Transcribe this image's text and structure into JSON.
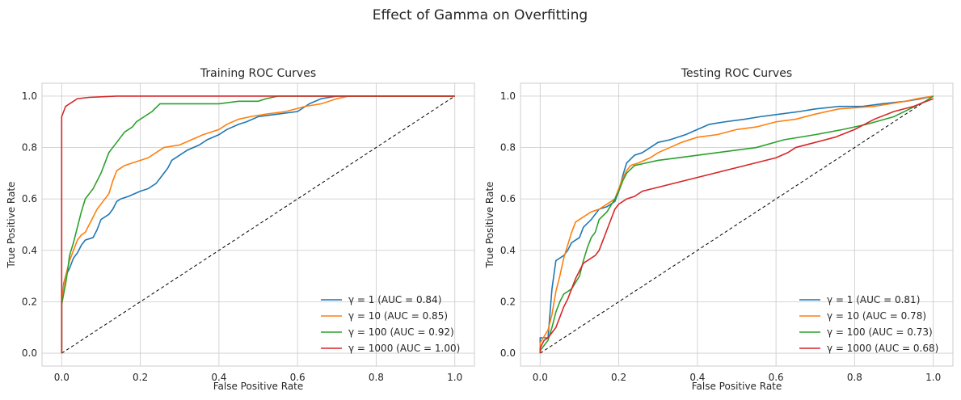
{
  "figure": {
    "title": "Effect of Gamma on Overfitting",
    "colors": [
      "#1f77b4",
      "#ff7f0e",
      "#2ca02c",
      "#d62728"
    ],
    "diagonal_color": "#000000"
  },
  "chart_data": [
    {
      "type": "line",
      "title": "Training ROC Curves",
      "xlabel": "False Positive Rate",
      "ylabel": "True Positive Rate",
      "xlim": [
        -0.05,
        1.05
      ],
      "ylim": [
        -0.05,
        1.05
      ],
      "xticks": [
        "0.0",
        "0.2",
        "0.4",
        "0.6",
        "0.8",
        "1.0"
      ],
      "yticks": [
        "0.0",
        "0.2",
        "0.4",
        "0.6",
        "0.8",
        "1.0"
      ],
      "grid": true,
      "legend": "lower-right",
      "series": [
        {
          "name": "γ = 1 (AUC = 0.84)",
          "points": [
            [
              0,
              0
            ],
            [
              0,
              0.19
            ],
            [
              0.005,
              0.27
            ],
            [
              0.01,
              0.3
            ],
            [
              0.02,
              0.33
            ],
            [
              0.03,
              0.37
            ],
            [
              0.04,
              0.39
            ],
            [
              0.05,
              0.42
            ],
            [
              0.06,
              0.44
            ],
            [
              0.08,
              0.45
            ],
            [
              0.09,
              0.48
            ],
            [
              0.1,
              0.52
            ],
            [
              0.12,
              0.54
            ],
            [
              0.13,
              0.56
            ],
            [
              0.14,
              0.59
            ],
            [
              0.15,
              0.6
            ],
            [
              0.17,
              0.61
            ],
            [
              0.2,
              0.63
            ],
            [
              0.22,
              0.64
            ],
            [
              0.24,
              0.66
            ],
            [
              0.25,
              0.68
            ],
            [
              0.26,
              0.7
            ],
            [
              0.27,
              0.72
            ],
            [
              0.28,
              0.75
            ],
            [
              0.3,
              0.77
            ],
            [
              0.32,
              0.79
            ],
            [
              0.35,
              0.81
            ],
            [
              0.37,
              0.83
            ],
            [
              0.4,
              0.85
            ],
            [
              0.42,
              0.87
            ],
            [
              0.45,
              0.89
            ],
            [
              0.47,
              0.9
            ],
            [
              0.5,
              0.92
            ],
            [
              0.55,
              0.93
            ],
            [
              0.6,
              0.94
            ],
            [
              0.63,
              0.97
            ],
            [
              0.66,
              0.99
            ],
            [
              0.7,
              1.0
            ],
            [
              1.0,
              1.0
            ]
          ]
        },
        {
          "name": "γ = 10 (AUC = 0.85)",
          "points": [
            [
              0,
              0
            ],
            [
              0,
              0.2
            ],
            [
              0.005,
              0.26
            ],
            [
              0.01,
              0.3
            ],
            [
              0.02,
              0.36
            ],
            [
              0.03,
              0.4
            ],
            [
              0.04,
              0.44
            ],
            [
              0.05,
              0.46
            ],
            [
              0.06,
              0.47
            ],
            [
              0.07,
              0.5
            ],
            [
              0.08,
              0.53
            ],
            [
              0.09,
              0.56
            ],
            [
              0.1,
              0.58
            ],
            [
              0.12,
              0.62
            ],
            [
              0.13,
              0.67
            ],
            [
              0.14,
              0.71
            ],
            [
              0.16,
              0.73
            ],
            [
              0.18,
              0.74
            ],
            [
              0.2,
              0.75
            ],
            [
              0.22,
              0.76
            ],
            [
              0.24,
              0.78
            ],
            [
              0.26,
              0.8
            ],
            [
              0.3,
              0.81
            ],
            [
              0.33,
              0.83
            ],
            [
              0.36,
              0.85
            ],
            [
              0.4,
              0.87
            ],
            [
              0.42,
              0.89
            ],
            [
              0.45,
              0.91
            ],
            [
              0.48,
              0.92
            ],
            [
              0.52,
              0.93
            ],
            [
              0.57,
              0.94
            ],
            [
              0.62,
              0.96
            ],
            [
              0.66,
              0.97
            ],
            [
              0.7,
              0.99
            ],
            [
              0.73,
              1.0
            ],
            [
              1.0,
              1.0
            ]
          ]
        },
        {
          "name": "γ = 100 (AUC = 0.92)",
          "points": [
            [
              0,
              0
            ],
            [
              0,
              0.19
            ],
            [
              0.01,
              0.27
            ],
            [
              0.015,
              0.32
            ],
            [
              0.02,
              0.38
            ],
            [
              0.03,
              0.43
            ],
            [
              0.04,
              0.49
            ],
            [
              0.05,
              0.55
            ],
            [
              0.06,
              0.6
            ],
            [
              0.07,
              0.62
            ],
            [
              0.08,
              0.64
            ],
            [
              0.09,
              0.67
            ],
            [
              0.1,
              0.7
            ],
            [
              0.11,
              0.74
            ],
            [
              0.12,
              0.78
            ],
            [
              0.13,
              0.8
            ],
            [
              0.14,
              0.82
            ],
            [
              0.15,
              0.84
            ],
            [
              0.16,
              0.86
            ],
            [
              0.18,
              0.88
            ],
            [
              0.19,
              0.9
            ],
            [
              0.21,
              0.92
            ],
            [
              0.23,
              0.94
            ],
            [
              0.25,
              0.97
            ],
            [
              0.3,
              0.97
            ],
            [
              0.4,
              0.97
            ],
            [
              0.45,
              0.98
            ],
            [
              0.5,
              0.98
            ],
            [
              0.52,
              0.99
            ],
            [
              0.55,
              1.0
            ],
            [
              1.0,
              1.0
            ]
          ]
        },
        {
          "name": "γ = 1000 (AUC = 1.00)",
          "points": [
            [
              0,
              0
            ],
            [
              0,
              0.92
            ],
            [
              0.005,
              0.94
            ],
            [
              0.01,
              0.96
            ],
            [
              0.02,
              0.97
            ],
            [
              0.03,
              0.98
            ],
            [
              0.04,
              0.99
            ],
            [
              0.07,
              0.995
            ],
            [
              0.14,
              1.0
            ],
            [
              1.0,
              1.0
            ]
          ]
        }
      ]
    },
    {
      "type": "line",
      "title": "Testing ROC Curves",
      "xlabel": "False Positive Rate",
      "ylabel": "True Positive Rate",
      "xlim": [
        -0.05,
        1.05
      ],
      "ylim": [
        -0.05,
        1.05
      ],
      "xticks": [
        "0.0",
        "0.2",
        "0.4",
        "0.6",
        "0.8",
        "1.0"
      ],
      "yticks": [
        "0.0",
        "0.2",
        "0.4",
        "0.6",
        "0.8",
        "1.0"
      ],
      "grid": true,
      "legend": "lower-right",
      "series": [
        {
          "name": "γ = 1 (AUC = 0.81)",
          "points": [
            [
              0,
              0
            ],
            [
              0,
              0.06
            ],
            [
              0.02,
              0.06
            ],
            [
              0.03,
              0.25
            ],
            [
              0.04,
              0.36
            ],
            [
              0.06,
              0.38
            ],
            [
              0.07,
              0.4
            ],
            [
              0.08,
              0.43
            ],
            [
              0.1,
              0.45
            ],
            [
              0.11,
              0.49
            ],
            [
              0.13,
              0.52
            ],
            [
              0.15,
              0.56
            ],
            [
              0.17,
              0.57
            ],
            [
              0.19,
              0.59
            ],
            [
              0.2,
              0.63
            ],
            [
              0.21,
              0.69
            ],
            [
              0.22,
              0.74
            ],
            [
              0.24,
              0.77
            ],
            [
              0.26,
              0.78
            ],
            [
              0.28,
              0.8
            ],
            [
              0.3,
              0.82
            ],
            [
              0.33,
              0.83
            ],
            [
              0.37,
              0.85
            ],
            [
              0.4,
              0.87
            ],
            [
              0.43,
              0.89
            ],
            [
              0.47,
              0.9
            ],
            [
              0.52,
              0.91
            ],
            [
              0.56,
              0.92
            ],
            [
              0.61,
              0.93
            ],
            [
              0.66,
              0.94
            ],
            [
              0.7,
              0.95
            ],
            [
              0.76,
              0.96
            ],
            [
              0.82,
              0.96
            ],
            [
              0.87,
              0.97
            ],
            [
              0.93,
              0.98
            ],
            [
              0.97,
              0.99
            ],
            [
              1.0,
              1.0
            ]
          ]
        },
        {
          "name": "γ = 10 (AUC = 0.78)",
          "points": [
            [
              0,
              0
            ],
            [
              0,
              0.04
            ],
            [
              0.02,
              0.09
            ],
            [
              0.03,
              0.15
            ],
            [
              0.04,
              0.24
            ],
            [
              0.05,
              0.3
            ],
            [
              0.06,
              0.37
            ],
            [
              0.07,
              0.42
            ],
            [
              0.08,
              0.47
            ],
            [
              0.09,
              0.51
            ],
            [
              0.11,
              0.53
            ],
            [
              0.13,
              0.55
            ],
            [
              0.15,
              0.56
            ],
            [
              0.17,
              0.58
            ],
            [
              0.19,
              0.6
            ],
            [
              0.2,
              0.64
            ],
            [
              0.21,
              0.68
            ],
            [
              0.22,
              0.71
            ],
            [
              0.23,
              0.73
            ],
            [
              0.25,
              0.74
            ],
            [
              0.28,
              0.76
            ],
            [
              0.3,
              0.78
            ],
            [
              0.33,
              0.8
            ],
            [
              0.36,
              0.82
            ],
            [
              0.4,
              0.84
            ],
            [
              0.45,
              0.85
            ],
            [
              0.5,
              0.87
            ],
            [
              0.55,
              0.88
            ],
            [
              0.6,
              0.9
            ],
            [
              0.65,
              0.91
            ],
            [
              0.7,
              0.93
            ],
            [
              0.76,
              0.95
            ],
            [
              0.85,
              0.96
            ],
            [
              0.93,
              0.98
            ],
            [
              0.96,
              0.99
            ],
            [
              1.0,
              1.0
            ]
          ]
        },
        {
          "name": "γ = 100 (AUC = 0.73)",
          "points": [
            [
              0,
              0
            ],
            [
              0,
              0.01
            ],
            [
              0.02,
              0.05
            ],
            [
              0.03,
              0.1
            ],
            [
              0.04,
              0.16
            ],
            [
              0.05,
              0.2
            ],
            [
              0.06,
              0.23
            ],
            [
              0.08,
              0.25
            ],
            [
              0.1,
              0.3
            ],
            [
              0.11,
              0.36
            ],
            [
              0.12,
              0.41
            ],
            [
              0.13,
              0.45
            ],
            [
              0.14,
              0.47
            ],
            [
              0.15,
              0.52
            ],
            [
              0.17,
              0.55
            ],
            [
              0.19,
              0.6
            ],
            [
              0.2,
              0.63
            ],
            [
              0.21,
              0.67
            ],
            [
              0.22,
              0.7
            ],
            [
              0.24,
              0.73
            ],
            [
              0.27,
              0.74
            ],
            [
              0.3,
              0.75
            ],
            [
              0.35,
              0.76
            ],
            [
              0.45,
              0.78
            ],
            [
              0.55,
              0.8
            ],
            [
              0.62,
              0.83
            ],
            [
              0.7,
              0.85
            ],
            [
              0.77,
              0.87
            ],
            [
              0.83,
              0.89
            ],
            [
              0.9,
              0.92
            ],
            [
              0.94,
              0.95
            ],
            [
              0.98,
              0.98
            ],
            [
              1.0,
              1.0
            ]
          ]
        },
        {
          "name": "γ = 1000 (AUC = 0.68)",
          "points": [
            [
              0,
              0
            ],
            [
              0,
              0.02
            ],
            [
              0.01,
              0.05
            ],
            [
              0.02,
              0.06
            ],
            [
              0.04,
              0.1
            ],
            [
              0.05,
              0.14
            ],
            [
              0.06,
              0.18
            ],
            [
              0.07,
              0.21
            ],
            [
              0.08,
              0.25
            ],
            [
              0.09,
              0.29
            ],
            [
              0.1,
              0.32
            ],
            [
              0.11,
              0.35
            ],
            [
              0.12,
              0.36
            ],
            [
              0.14,
              0.38
            ],
            [
              0.15,
              0.4
            ],
            [
              0.16,
              0.44
            ],
            [
              0.17,
              0.48
            ],
            [
              0.18,
              0.52
            ],
            [
              0.19,
              0.56
            ],
            [
              0.2,
              0.58
            ],
            [
              0.22,
              0.6
            ],
            [
              0.24,
              0.61
            ],
            [
              0.26,
              0.63
            ],
            [
              0.6,
              0.76
            ],
            [
              0.63,
              0.78
            ],
            [
              0.65,
              0.8
            ],
            [
              0.7,
              0.82
            ],
            [
              0.75,
              0.84
            ],
            [
              0.8,
              0.87
            ],
            [
              0.85,
              0.91
            ],
            [
              0.9,
              0.94
            ],
            [
              0.95,
              0.96
            ],
            [
              1.0,
              0.99
            ]
          ]
        }
      ]
    }
  ]
}
